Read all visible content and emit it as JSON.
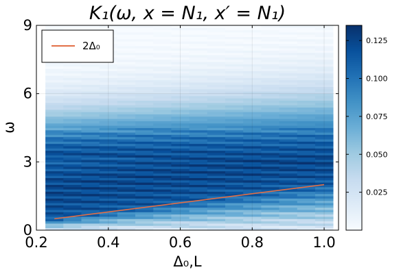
{
  "chart_data": {
    "type": "heatmap",
    "title": "K₁(ω, x = N₁, x′ = N₁)",
    "xlabel": "Δ₀,L",
    "ylabel": "ω",
    "xlim": [
      0.2,
      1.04
    ],
    "ylim": [
      0,
      9
    ],
    "xticks": [
      "0.2",
      "0.4",
      "0.6",
      "0.8",
      "1.0"
    ],
    "xtick_values": [
      0.2,
      0.4,
      0.6,
      0.8,
      1.0
    ],
    "yticks": [
      "0",
      "3",
      "6",
      "9"
    ],
    "ytick_values": [
      0,
      3,
      6,
      9
    ],
    "colormap": "Blues",
    "color_low": "#f7fbff",
    "color_high": "#08306b",
    "colorbar": {
      "range": [
        0.0,
        0.135
      ],
      "ticks": [
        "0.025",
        "0.050",
        "0.075",
        "0.100",
        "0.125"
      ],
      "tick_values": [
        0.025,
        0.05,
        0.075,
        0.1,
        0.125
      ]
    },
    "heatmap_x_range": [
      0.225,
      1.025
    ],
    "heatmap_columns": [
      0.25,
      0.3,
      0.35,
      0.4,
      0.45,
      0.5,
      0.55,
      0.6,
      0.65,
      0.7,
      0.75,
      0.8,
      0.85,
      0.9,
      0.95,
      1.0
    ],
    "heatmap_y_range": [
      0,
      9
    ],
    "series": [
      {
        "name": "2Δ₀",
        "color": "#e26f46",
        "x": [
          0.25,
          1.0
        ],
        "y": [
          0.5,
          2.0
        ]
      }
    ],
    "legend": "top-left",
    "grid": true
  }
}
